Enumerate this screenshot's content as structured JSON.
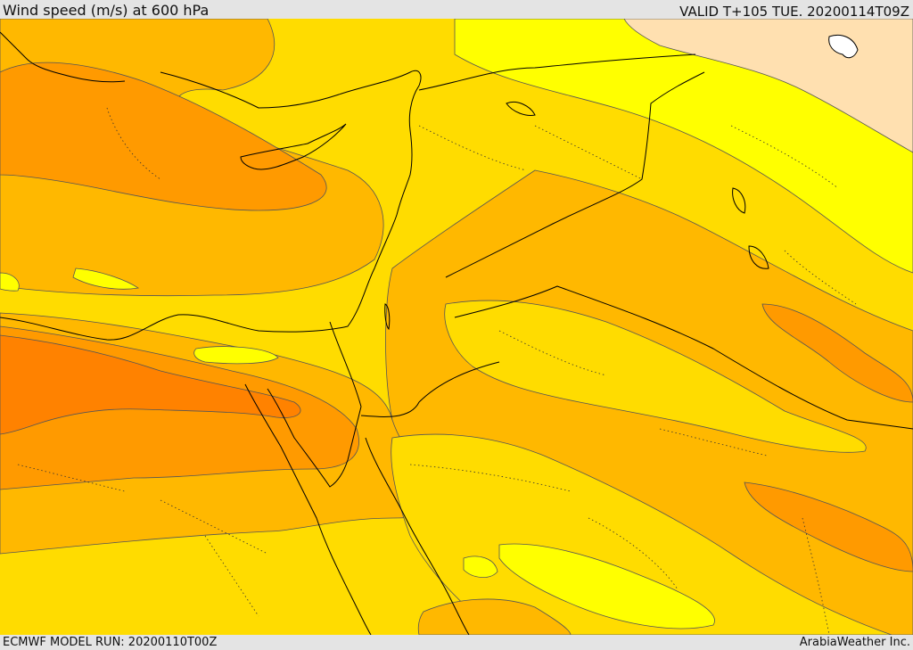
{
  "header": {
    "title": "Wind speed (m/s) at 600 hPa",
    "valid_time": "VALID T+105 TUE. 20200114T09Z"
  },
  "footer": {
    "model_run": "ECMWF MODEL RUN: 20200110T00Z",
    "credit": "ArabiaWeather Inc."
  },
  "map": {
    "type": "filled-contour wind speed map",
    "region": "Eastern Mediterranean / Middle East",
    "shading_colors": {
      "lightest": "#ffe0b0",
      "light": "#ffff00",
      "medium_light": "#ffdc00",
      "medium": "#ffb800",
      "strong": "#ff9a00",
      "strongest": "#ff8200"
    },
    "lines": {
      "coastline": "#000000",
      "borders": "#000000",
      "contour": "#555555"
    }
  }
}
